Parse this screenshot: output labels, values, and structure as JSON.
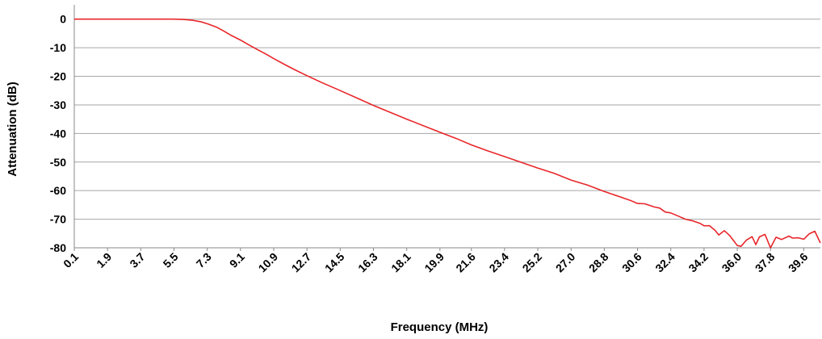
{
  "chart_data": {
    "type": "line",
    "title": "",
    "xlabel": "Frequency (MHz)",
    "ylabel": "Attenuation (dB)",
    "xlim": [
      0.1,
      40.5
    ],
    "ylim": [
      -80,
      5
    ],
    "x_ticks": [
      "0.1",
      "1.9",
      "3.7",
      "5.5",
      "7.3",
      "9.1",
      "10.9",
      "12.7",
      "14.5",
      "16.3",
      "18.1",
      "19.9",
      "21.6",
      "23.4",
      "25.2",
      "27.0",
      "28.8",
      "30.6",
      "32.4",
      "34.2",
      "36.0",
      "37.8",
      "39.6"
    ],
    "y_ticks": [
      "0",
      "-10",
      "-20",
      "-30",
      "-40",
      "-50",
      "-60",
      "-70",
      "-80"
    ],
    "grid": true,
    "legend": "none",
    "series": [
      {
        "color": "#e8262a",
        "x": [
          0.1,
          1.9,
          3.7,
          5.5,
          6.0,
          6.5,
          7.0,
          7.3,
          7.8,
          8.2,
          8.6,
          9.1,
          9.5,
          10.0,
          10.5,
          10.9,
          11.5,
          12.0,
          12.7,
          13.5,
          14.5,
          15.4,
          16.3,
          17.2,
          18.1,
          19.0,
          19.9,
          20.8,
          21.6,
          22.5,
          23.4,
          24.3,
          25.2,
          26.1,
          27.0,
          27.9,
          28.8,
          29.2,
          29.7,
          30.2,
          30.6,
          31.0,
          31.5,
          31.8,
          32.1,
          32.4,
          32.8,
          33.2,
          33.6,
          34.0,
          34.2,
          34.5,
          34.8,
          35.0,
          35.3,
          35.6,
          35.8,
          36.0,
          36.2,
          36.5,
          36.8,
          37.0,
          37.2,
          37.5,
          37.8,
          38.1,
          38.4,
          38.8,
          39.0,
          39.3,
          39.6,
          39.9,
          40.2,
          40.5
        ],
        "y": [
          0,
          0,
          0,
          0,
          -0.1,
          -0.4,
          -1.0,
          -1.6,
          -2.8,
          -4.2,
          -5.7,
          -7.3,
          -8.8,
          -10.6,
          -12.3,
          -13.8,
          -15.9,
          -17.6,
          -19.8,
          -22.2,
          -25.0,
          -27.6,
          -30.2,
          -32.6,
          -35.0,
          -37.3,
          -39.6,
          -41.8,
          -44.0,
          -46.1,
          -48.1,
          -50.1,
          -52.1,
          -54.0,
          -56.3,
          -58.1,
          -60.3,
          -61.2,
          -62.3,
          -63.4,
          -64.5,
          -64.6,
          -65.7,
          -66.1,
          -67.5,
          -67.8,
          -68.9,
          -70.0,
          -70.6,
          -71.5,
          -72.3,
          -72.3,
          -73.9,
          -75.5,
          -74.0,
          -75.8,
          -77.5,
          -79.2,
          -79.5,
          -77.3,
          -76.1,
          -78.9,
          -76.2,
          -75.3,
          -80.2,
          -76.3,
          -77.1,
          -75.9,
          -76.6,
          -76.5,
          -77.0,
          -75.1,
          -74.2,
          -78.3
        ]
      }
    ]
  }
}
